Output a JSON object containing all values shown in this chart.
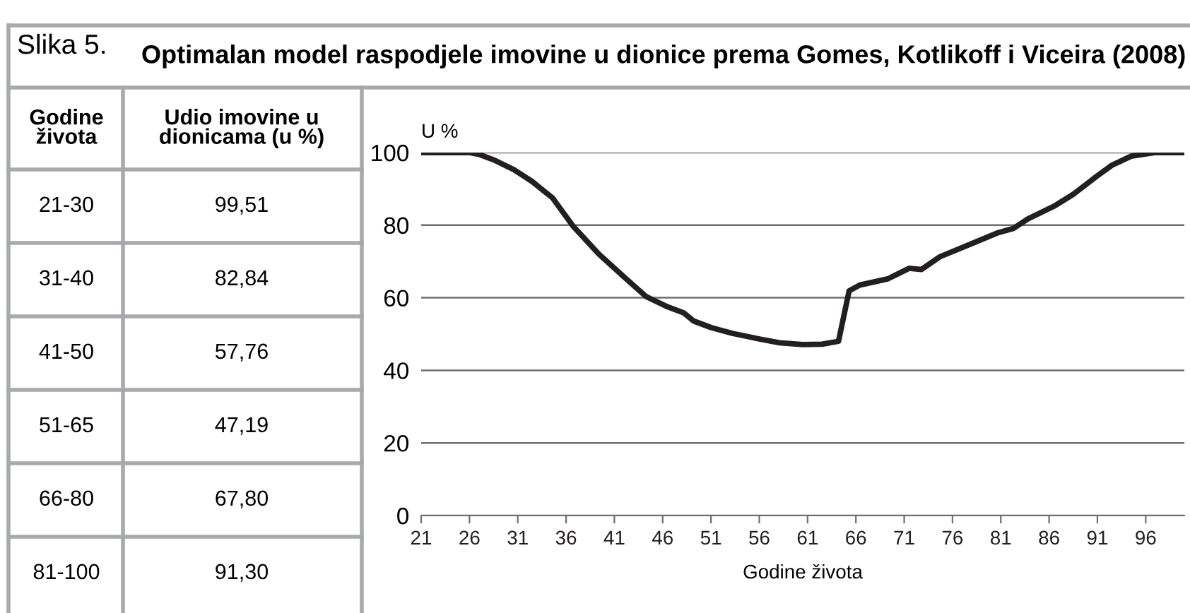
{
  "chart_data": {
    "type": "line",
    "title": "Optimalan model raspodjele imovine u dionice prema Gomes, Kotlikoff i Viceira (2008)",
    "xlabel": "Godine života",
    "ylabel": "U %",
    "annotations": [
      "Slika 5.",
      "Godine\nživota",
      "Udio imovine u\ndionicama (u %)",
      "21-30",
      "99,51",
      "31-40",
      "82,84",
      "41-50",
      "57,76",
      "51-65",
      "47,19",
      "66-80",
      "67,80",
      "81-100",
      "91,30"
    ],
    "series": [
      {
        "color": "#231f20",
        "x": [
          21,
          24,
          26,
          27,
          28.5,
          30.6,
          32.5,
          34.6,
          36.7,
          39.4,
          42.1,
          44.3,
          46.5,
          48.2,
          49.2,
          51,
          53.2,
          56.1,
          58.1,
          60.5,
          62.5,
          64.2,
          65.3,
          66.4,
          69.3,
          71.5,
          72.8,
          74.7,
          77.7,
          80.6,
          82.3,
          83.8,
          86.5,
          88.5,
          90.9,
          92.5,
          94.5,
          97,
          100
        ],
        "values": [
          100,
          100,
          100,
          99.5,
          98,
          95.3,
          92,
          87.5,
          79.8,
          72,
          65.5,
          60.3,
          57.5,
          55.8,
          53.6,
          51.8,
          50.2,
          48.6,
          47.6,
          47.1,
          47.2,
          48,
          61.9,
          63.5,
          65.2,
          68.1,
          67.8,
          71.3,
          74.6,
          77.8,
          79.1,
          81.7,
          85.2,
          88.5,
          93.4,
          96.5,
          99,
          100,
          100
        ]
      }
    ],
    "xlim": [
      21,
      100
    ],
    "xticks": [
      21,
      26,
      31,
      36,
      41,
      46,
      51,
      56,
      61,
      66,
      71,
      76,
      81,
      86,
      91,
      96
    ],
    "ylim": [
      0,
      100
    ],
    "yticks": [
      0,
      20,
      40,
      60,
      80,
      100
    ],
    "grid": "y",
    "marker": "none",
    "line_style": "solid"
  }
}
